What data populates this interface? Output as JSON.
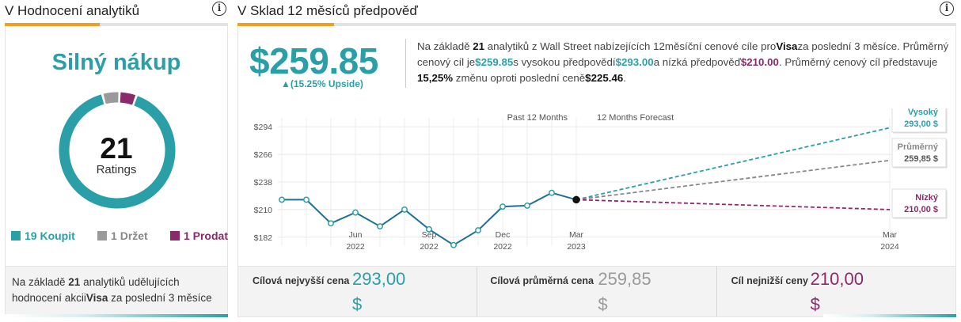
{
  "ratings_panel": {
    "title": "V Hodnocení analytiků",
    "consensus": "Silný nákup",
    "total_count": "21",
    "count_label": "Ratings",
    "breakdown": [
      {
        "label": "19 Koupit",
        "count": 19,
        "color": "#2b9fa8"
      },
      {
        "label": "1 Držet",
        "count": 1,
        "color": "#9a9a9a"
      },
      {
        "label": "1 Prodat",
        "count": 1,
        "color": "#8b2a6a"
      }
    ],
    "footer": {
      "part1": "Na základě ",
      "count": "21",
      "part2": " analytiků udělujících hodnocení akcii",
      "ticker": "Visa",
      "part3": " za poslední 3 měsíce"
    }
  },
  "forecast_panel": {
    "title": "V Sklad 12 měsíců předpověď",
    "average_price": "$259.85",
    "upside": "▲(15.25% Upside)",
    "summary": {
      "s1": "Na základě ",
      "analysts": "21",
      "s2": " analytiků z Wall Street nabízejících 12měsíční cenové cíle pro",
      "ticker": "Visa",
      "s3": "za poslední 3 měsíce. Průměrný cenový cíl je",
      "avg": "$259.85",
      "s4": "s vysokou předpovědí",
      "high": "$293.00",
      "s5": "a nízká předpověď",
      "low": "$210.00",
      "s6": ". Průměrný cenový cíl představuje ",
      "change": "15,25%",
      "s7": " změnu oproti poslední ceně",
      "last": "$225.46",
      "s8": "."
    },
    "targets": [
      {
        "label": "Cílová nejvyšší cena",
        "value": "293,00",
        "currency": "$",
        "color": "#2b9fa8"
      },
      {
        "label": "Cílová průměrná cena",
        "value": "259,85",
        "currency": "$",
        "color": "#9a9a9a"
      },
      {
        "label": "Cíl nejnižší ceny",
        "value": "210,00",
        "currency": "$",
        "color": "#8b2a6a"
      }
    ]
  },
  "chart_data": {
    "type": "line",
    "section_labels": [
      "Past 12 Months",
      "12 Months Forecast"
    ],
    "y_ticks": [
      {
        "value": 294,
        "label": "$294"
      },
      {
        "value": 266,
        "label": "$266"
      },
      {
        "value": 238,
        "label": "$238"
      },
      {
        "value": 210,
        "label": "$210"
      },
      {
        "value": 182,
        "label": "$182"
      }
    ],
    "ylim": [
      173,
      303
    ],
    "x_ticks": [
      {
        "month_index": 3,
        "label": "Jun",
        "year": "2022"
      },
      {
        "month_index": 6,
        "label": "Sep",
        "year": "2022"
      },
      {
        "month_index": 9,
        "label": "Dec",
        "year": "2022"
      },
      {
        "month_index": 12,
        "label": "Mar",
        "year": "2023"
      },
      {
        "month_index": 24,
        "label": "Mar",
        "year": "2024"
      }
    ],
    "history": {
      "color": "#1f6f96",
      "points": [
        {
          "month": "2022-03",
          "price": 220
        },
        {
          "month": "2022-04",
          "price": 220
        },
        {
          "month": "2022-05",
          "price": 196
        },
        {
          "month": "2022-06",
          "price": 207
        },
        {
          "month": "2022-07",
          "price": 193
        },
        {
          "month": "2022-08",
          "price": 210
        },
        {
          "month": "2022-09",
          "price": 190
        },
        {
          "month": "2022-10",
          "price": 174
        },
        {
          "month": "2022-11",
          "price": 189
        },
        {
          "month": "2022-12",
          "price": 213
        },
        {
          "month": "2023-01",
          "price": 214
        },
        {
          "month": "2023-02",
          "price": 227
        },
        {
          "month": "2023-03",
          "price": 220
        }
      ]
    },
    "forecasts": [
      {
        "name": "Vysoký",
        "value_label": "293,00 $",
        "target": 293,
        "color": "#2b9fa8"
      },
      {
        "name": "Průměrný",
        "value_label": "259,85 $",
        "target": 259.85,
        "color": "#888888"
      },
      {
        "name": "Nízký",
        "value_label": "210,00 $",
        "target": 210,
        "color": "#8b2a6a"
      }
    ]
  }
}
